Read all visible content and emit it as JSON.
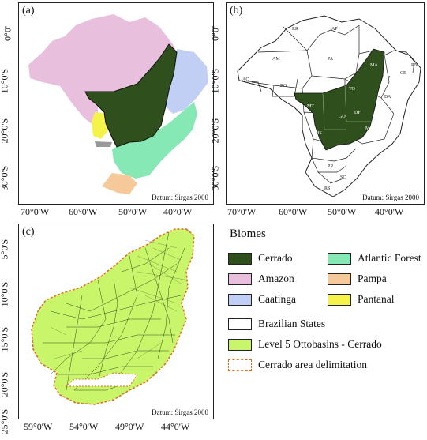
{
  "panels": {
    "a": {
      "label": "(a)",
      "datum": "Datum: Sirgas 2000"
    },
    "b": {
      "label": "(b)",
      "datum": "Datum: Sirgas 2000"
    },
    "c": {
      "label": "(c)",
      "datum": "Datum: Sirgas 2000"
    }
  },
  "top_x_ticks": [
    "70°0'W",
    "60°0'W",
    "50°0'W",
    "40°0'W"
  ],
  "top_y_ticks": [
    "0°0'",
    "10°0'S",
    "20°0'S",
    "30°0'S"
  ],
  "bottom_x_ticks": [
    "59°0'W",
    "54°0'W",
    "49°0'W",
    "44°0'W"
  ],
  "bottom_y_ticks": [
    "5°0'S",
    "10°0'S",
    "15°0'S",
    "20°0'S",
    "25°0'S"
  ],
  "legend": {
    "title": "Biomes",
    "biomes": [
      {
        "label": "Cerrado",
        "color": "#2f4f1c"
      },
      {
        "label": "Atlantic Forest",
        "color": "#86e8b4"
      },
      {
        "label": "Amazon",
        "color": "#e8bfdc"
      },
      {
        "label": "Pampa",
        "color": "#f5c99a"
      },
      {
        "label": "Caatinga",
        "color": "#c2cff5"
      },
      {
        "label": "Pantanal",
        "color": "#f3f34a"
      }
    ],
    "brazilian_states": "Brazilian States",
    "ottobasins": "Level 5 Ottobasins - Cerrado",
    "ottobasins_color": "#c8f56a",
    "delimitation": "Cerrado area delimitation",
    "delimitation_color": "#e06a1a"
  },
  "state_labels": [
    "RR",
    "AP",
    "AM",
    "PA",
    "MA",
    "CE",
    "RN",
    "PI",
    "AC",
    "RO",
    "TO",
    "BA",
    "MT",
    "GO",
    "DF",
    "MG",
    "MS",
    "PR",
    "SC",
    "RS"
  ]
}
